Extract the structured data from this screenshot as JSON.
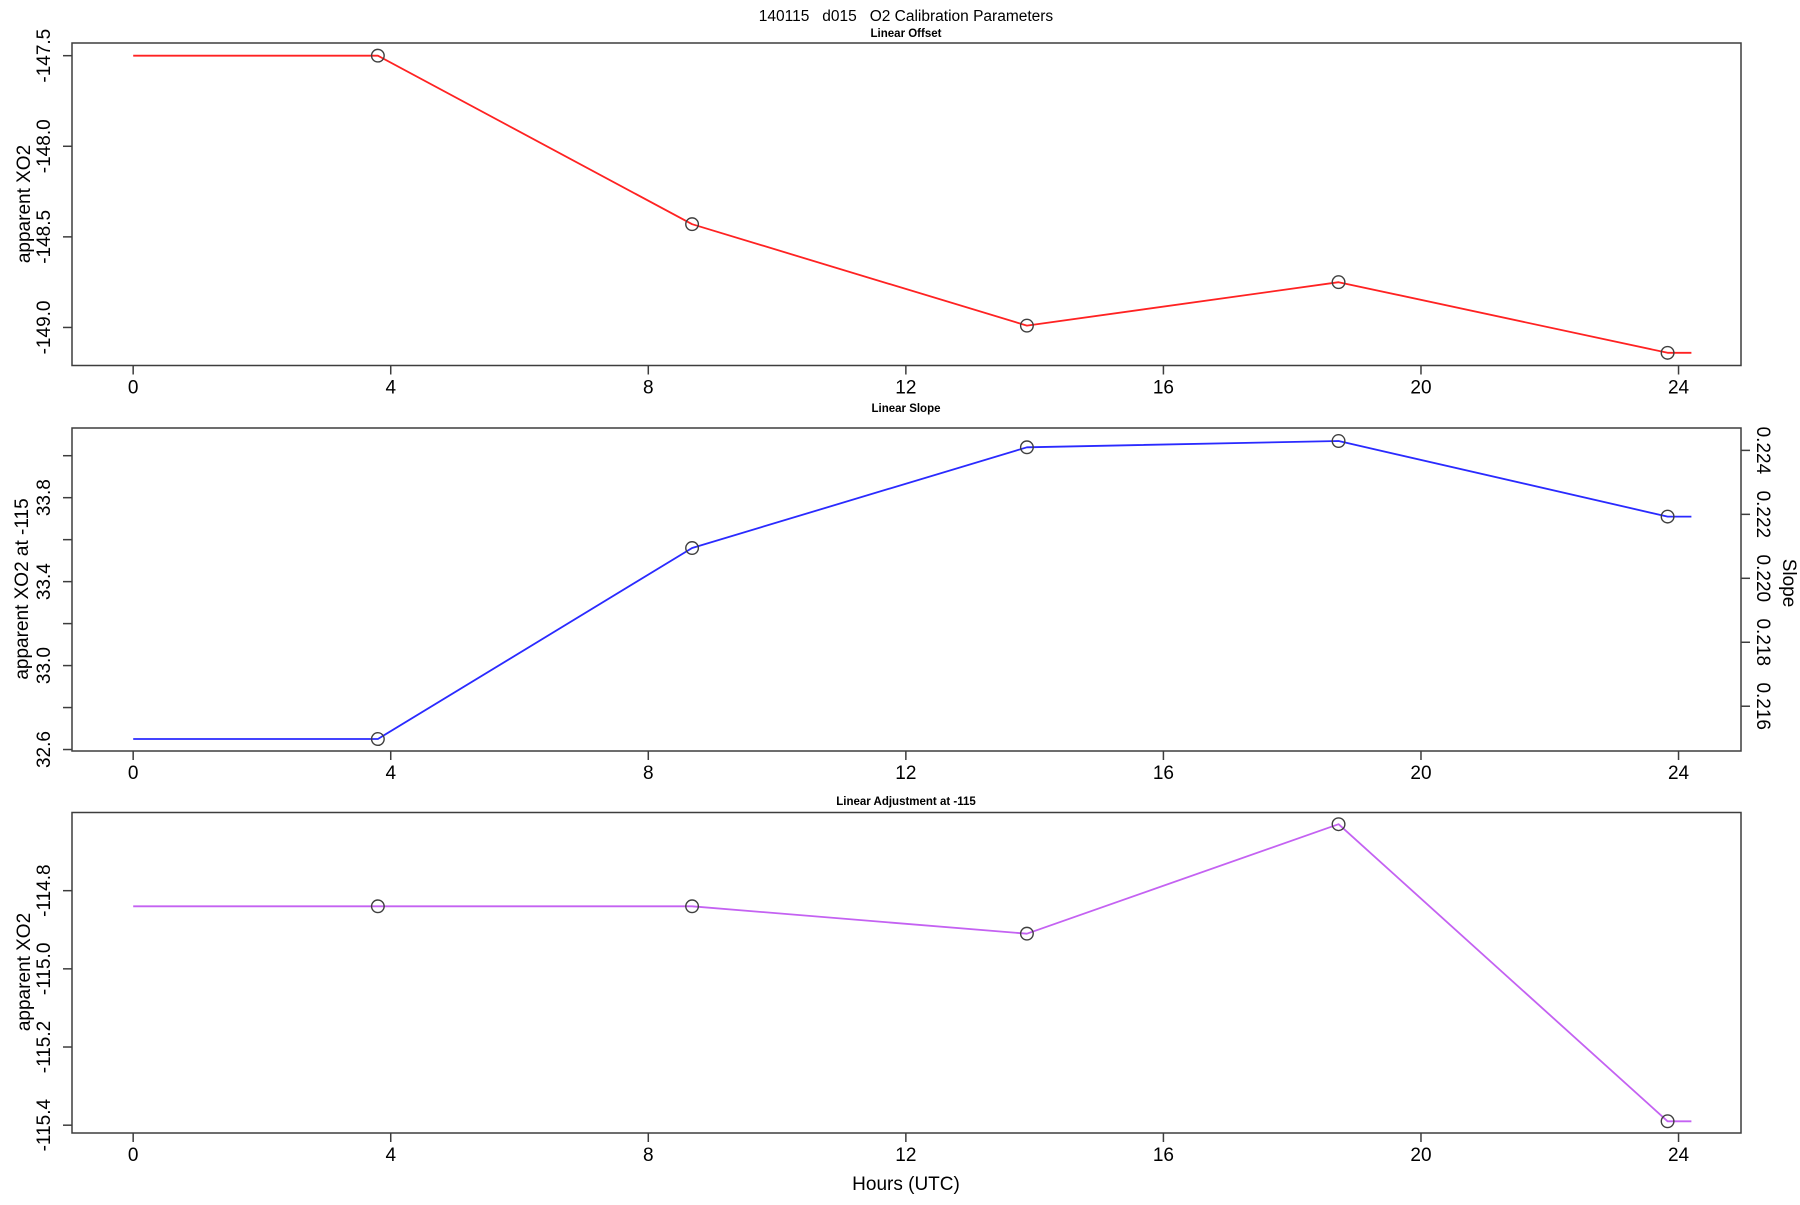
{
  "figure": {
    "title": "140115   d015   O2 Calibration Parameters",
    "xlabel": "Hours (UTC)"
  },
  "colors": {
    "offset_line": "#ff2222",
    "slope_line": "#2a2aff",
    "adjustment_line": "#c462f2",
    "frame": "#3d3d3d",
    "marker": "#3f3f3f",
    "background": "#ffffff"
  },
  "chart_data": [
    {
      "type": "line",
      "title": "Linear Offset",
      "ylabel": "apparent XO2",
      "series_name": "linear offset",
      "marker": "open-circle",
      "x": [
        3.8,
        8.68,
        13.88,
        18.72,
        23.83
      ],
      "y": [
        -147.5,
        -148.43,
        -148.99,
        -148.75,
        -149.14
      ],
      "line_extends_x": [
        0,
        24.2
      ],
      "xlim": [
        -0.95,
        24.97
      ],
      "ylim": [
        -149.21,
        -147.43
      ],
      "xticks": [
        0,
        4,
        8,
        12,
        16,
        20,
        24
      ],
      "yticks": [
        {
          "v": -147.5,
          "label": "-147.5"
        },
        {
          "v": -148.0,
          "label": "-148.0"
        },
        {
          "v": -148.5,
          "label": "-148.5"
        },
        {
          "v": -149.0,
          "label": "-149.0"
        }
      ],
      "grid": false
    },
    {
      "type": "line",
      "title": "Linear Slope",
      "ylabel": "apparent XO2 at -115",
      "ylabel_right": "Slope",
      "series_name": "linear slope",
      "marker": "open-circle",
      "x": [
        3.8,
        8.68,
        13.88,
        18.72,
        23.83
      ],
      "y": [
        32.65,
        33.56,
        34.04,
        34.07,
        33.71
      ],
      "y_right_equivalent": [
        0.215,
        0.221,
        0.2241,
        0.2243,
        0.2219
      ],
      "line_extends_x": [
        0,
        24.2
      ],
      "xlim": [
        -0.95,
        24.97
      ],
      "ylim": [
        32.593,
        34.132
      ],
      "ylim_right": [
        0.2146,
        0.2247
      ],
      "xticks": [
        0,
        4,
        8,
        12,
        16,
        20,
        24
      ],
      "yticks": [
        {
          "v": 32.6,
          "label": "32.6"
        },
        {
          "v": 32.8
        },
        {
          "v": 33.0,
          "label": "33.0"
        },
        {
          "v": 33.2
        },
        {
          "v": 33.4,
          "label": "33.4"
        },
        {
          "v": 33.6
        },
        {
          "v": 33.8,
          "label": "33.8"
        },
        {
          "v": 34.0
        }
      ],
      "yticks_right": [
        {
          "v": 0.216,
          "label": "0.216"
        },
        {
          "v": 0.218,
          "label": "0.218"
        },
        {
          "v": 0.22,
          "label": "0.220"
        },
        {
          "v": 0.222,
          "label": "0.222"
        },
        {
          "v": 0.224,
          "label": "0.224"
        }
      ],
      "grid": false
    },
    {
      "type": "line",
      "title": "Linear Adjustment at -115",
      "ylabel": "apparent XO2",
      "series_name": "linear adjustment at -115",
      "marker": "open-circle",
      "x": [
        3.8,
        8.68,
        13.88,
        18.72,
        23.83
      ],
      "y": [
        -114.84,
        -114.84,
        -114.91,
        -114.63,
        -115.39
      ],
      "line_extends_x": [
        0,
        24.2
      ],
      "xlim": [
        -0.95,
        24.97
      ],
      "ylim": [
        -115.42,
        -114.6
      ],
      "xticks": [
        0,
        4,
        8,
        12,
        16,
        20,
        24
      ],
      "yticks": [
        {
          "v": -114.8,
          "label": "-114.8"
        },
        {
          "v": -115.0,
          "label": "-115.0"
        },
        {
          "v": -115.2,
          "label": "-115.2"
        },
        {
          "v": -115.4,
          "label": "-115.4"
        }
      ],
      "grid": false
    }
  ]
}
